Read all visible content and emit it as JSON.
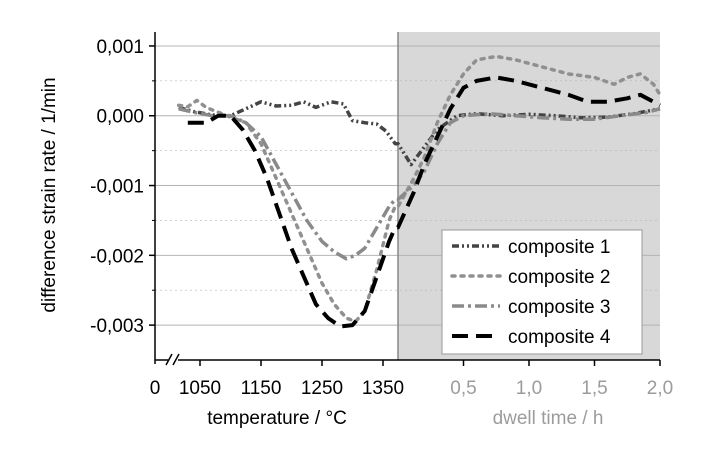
{
  "chart_data": {
    "type": "line",
    "ylabel": "difference strain rate / 1/min",
    "xlabel_temperature": "temperature / °C",
    "xlabel_dwell": "dwell time / h",
    "y_range": [
      -0.0035,
      0.0012
    ],
    "y_ticks": [
      0.001,
      0.0,
      -0.001,
      -0.002,
      -0.003
    ],
    "y_tick_labels": [
      "0,001",
      "0,000",
      "-0,001",
      "-0,002",
      "-0,003"
    ],
    "x_origin_label": "0",
    "temperature_range": [
      1000,
      1370
    ],
    "temperature_ticks": [
      1050,
      1150,
      1250,
      1350
    ],
    "temperature_tick_labels": [
      "1050",
      "1150",
      "1250",
      "1350"
    ],
    "dwell_range": [
      0.0,
      2.0
    ],
    "dwell_ticks": [
      0.5,
      1.0,
      1.5,
      2.0
    ],
    "dwell_tick_labels": [
      "0,5",
      "1,0",
      "1,5",
      "2,0"
    ],
    "series": [
      {
        "name": "composite 1",
        "style": "dash-dot-dot",
        "color": "#444444",
        "temperature": [
          [
            1015,
            0.00012
          ],
          [
            1040,
            6e-05
          ],
          [
            1070,
            1e-05
          ],
          [
            1100,
            0.0
          ],
          [
            1125,
            0.0001
          ],
          [
            1150,
            0.0002
          ],
          [
            1175,
            0.00014
          ],
          [
            1200,
            0.00015
          ],
          [
            1220,
            0.0002
          ],
          [
            1240,
            0.00012
          ],
          [
            1265,
            0.0002
          ],
          [
            1285,
            0.00017
          ],
          [
            1300,
            -7e-05
          ],
          [
            1320,
            -0.0001
          ],
          [
            1340,
            -0.00012
          ],
          [
            1355,
            -0.00022
          ],
          [
            1370,
            -0.0004
          ]
        ],
        "dwell": [
          [
            0.0,
            -0.0004
          ],
          [
            0.1,
            -0.0007
          ],
          [
            0.18,
            -0.0005
          ],
          [
            0.3,
            -0.0002
          ],
          [
            0.45,
            0.0
          ],
          [
            0.6,
            3e-05
          ],
          [
            0.8,
            0.0
          ],
          [
            1.0,
            2e-05
          ],
          [
            1.2,
            0.0
          ],
          [
            1.4,
            -3e-05
          ],
          [
            1.6,
            -2e-05
          ],
          [
            1.8,
            3e-05
          ],
          [
            2.0,
            0.0001
          ]
        ]
      },
      {
        "name": "composite 2",
        "style": "dot",
        "color": "#909090",
        "temperature": [
          [
            1015,
            0.00015
          ],
          [
            1030,
            0.00013
          ],
          [
            1045,
            0.00022
          ],
          [
            1060,
            0.00012
          ],
          [
            1080,
            5e-05
          ],
          [
            1100,
            -2e-05
          ],
          [
            1125,
            -0.0001
          ],
          [
            1150,
            -0.0004
          ],
          [
            1175,
            -0.0009
          ],
          [
            1200,
            -0.0014
          ],
          [
            1225,
            -0.0019
          ],
          [
            1250,
            -0.0024
          ],
          [
            1270,
            -0.0027
          ],
          [
            1290,
            -0.0029
          ],
          [
            1305,
            -0.00295
          ],
          [
            1320,
            -0.0028
          ],
          [
            1340,
            -0.0022
          ],
          [
            1360,
            -0.0015
          ],
          [
            1370,
            -0.0013
          ]
        ],
        "dwell": [
          [
            0.0,
            -0.0013
          ],
          [
            0.12,
            -0.0009
          ],
          [
            0.2,
            -0.0006
          ],
          [
            0.3,
            -0.0001
          ],
          [
            0.4,
            0.0003
          ],
          [
            0.5,
            0.0006
          ],
          [
            0.6,
            0.0008
          ],
          [
            0.75,
            0.00085
          ],
          [
            0.9,
            0.0008
          ],
          [
            1.1,
            0.0007
          ],
          [
            1.3,
            0.0006
          ],
          [
            1.5,
            0.00055
          ],
          [
            1.65,
            0.00045
          ],
          [
            1.75,
            0.00055
          ],
          [
            1.85,
            0.0006
          ],
          [
            1.95,
            0.00045
          ],
          [
            2.0,
            0.0003
          ]
        ]
      },
      {
        "name": "composite 3",
        "style": "dash-dot",
        "color": "#8a8a8a",
        "temperature": [
          [
            1015,
            0.0001
          ],
          [
            1040,
            5e-05
          ],
          [
            1070,
            0.0
          ],
          [
            1100,
            0.0
          ],
          [
            1125,
            -0.0001
          ],
          [
            1150,
            -0.0003
          ],
          [
            1175,
            -0.0007
          ],
          [
            1200,
            -0.0011
          ],
          [
            1225,
            -0.0015
          ],
          [
            1250,
            -0.0018
          ],
          [
            1270,
            -0.00195
          ],
          [
            1290,
            -0.00205
          ],
          [
            1305,
            -0.002
          ],
          [
            1320,
            -0.0019
          ],
          [
            1340,
            -0.0016
          ],
          [
            1360,
            -0.0013
          ],
          [
            1370,
            -0.0012
          ]
        ],
        "dwell": [
          [
            0.0,
            -0.0012
          ],
          [
            0.12,
            -0.001
          ],
          [
            0.2,
            -0.0008
          ],
          [
            0.3,
            -0.0004
          ],
          [
            0.4,
            -0.0001
          ],
          [
            0.5,
            0.0
          ],
          [
            0.7,
            3e-05
          ],
          [
            0.9,
            0.0
          ],
          [
            1.1,
            -3e-05
          ],
          [
            1.3,
            -5e-05
          ],
          [
            1.5,
            -5e-05
          ],
          [
            1.7,
            0.0
          ],
          [
            1.9,
            5e-05
          ],
          [
            2.0,
            0.0001
          ]
        ]
      },
      {
        "name": "composite 4",
        "style": "dash",
        "color": "#000000",
        "temperature": [
          [
            1030,
            -0.0001
          ],
          [
            1060,
            -0.0001
          ],
          [
            1080,
            0.0
          ],
          [
            1100,
            0.0
          ],
          [
            1120,
            -0.0002
          ],
          [
            1140,
            -0.0005
          ],
          [
            1160,
            -0.0009
          ],
          [
            1180,
            -0.0014
          ],
          [
            1200,
            -0.0019
          ],
          [
            1220,
            -0.0023
          ],
          [
            1240,
            -0.0027
          ],
          [
            1260,
            -0.0029
          ],
          [
            1280,
            -0.00302
          ],
          [
            1300,
            -0.003
          ],
          [
            1320,
            -0.0028
          ],
          [
            1340,
            -0.0023
          ],
          [
            1360,
            -0.0018
          ],
          [
            1370,
            -0.0016
          ]
        ],
        "dwell": [
          [
            0.0,
            -0.0016
          ],
          [
            0.12,
            -0.0011
          ],
          [
            0.2,
            -0.0007
          ],
          [
            0.3,
            -0.0003
          ],
          [
            0.4,
            0.0001
          ],
          [
            0.5,
            0.0004
          ],
          [
            0.6,
            0.0005
          ],
          [
            0.75,
            0.00055
          ],
          [
            0.9,
            0.0005
          ],
          [
            1.1,
            0.0004
          ],
          [
            1.3,
            0.0003
          ],
          [
            1.45,
            0.0002
          ],
          [
            1.6,
            0.0002
          ],
          [
            1.75,
            0.00025
          ],
          [
            1.85,
            0.0003
          ],
          [
            2.0,
            0.00015
          ]
        ]
      }
    ]
  },
  "colors": {
    "shade": "#d8d8d8",
    "grid": "#b4b4b4",
    "axis": "#000000",
    "divider": "#888888",
    "dwell_text": "#9c9c9c"
  }
}
